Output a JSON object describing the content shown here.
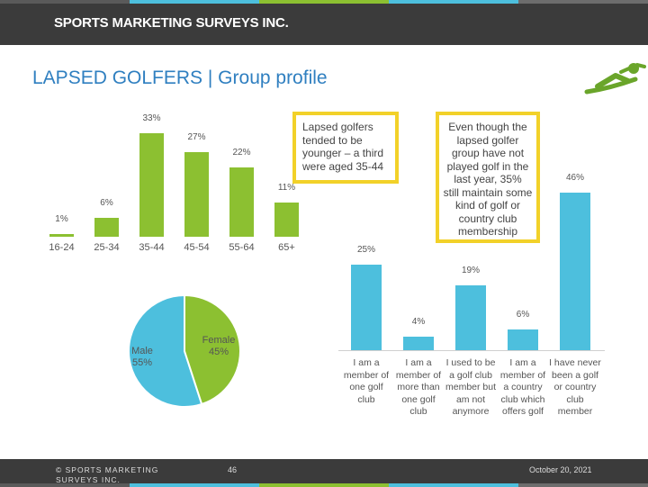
{
  "header": {
    "brand": "SPORTS MARKETING SURVEYS INC.",
    "stripe_colors": [
      "#5a5a5a",
      "#4dbfdd",
      "#8cc031",
      "#4dbfdd",
      "#6d6d6d"
    ]
  },
  "title": "LAPSED GOLFERS | Group profile",
  "callouts": {
    "age": [
      "Lapsed golfers",
      "tended to be",
      "younger – a third",
      "were aged 35-44"
    ],
    "membership": [
      "Even though the",
      "lapsed golfer",
      "group have not",
      "played golf in the",
      "last year, 35%",
      "still maintain some",
      "kind of golf or",
      "country club",
      "membership"
    ]
  },
  "chart_data": [
    {
      "type": "bar",
      "title": "",
      "categories": [
        "16-24",
        "25-34",
        "35-44",
        "45-54",
        "55-64",
        "65+"
      ],
      "values": [
        1,
        6,
        33,
        27,
        22,
        11
      ],
      "value_labels": [
        "1%",
        "6%",
        "33%",
        "27%",
        "22%",
        "11%"
      ],
      "color": "#8cc031",
      "ylim": [
        0,
        33
      ]
    },
    {
      "type": "bar",
      "title": "",
      "categories": [
        [
          "I am a",
          "member of",
          "one golf",
          "club"
        ],
        [
          "I am a",
          "member of",
          "more than",
          "one golf",
          "club"
        ],
        [
          "I used to be",
          "a golf club",
          "member but",
          "am not",
          "anymore"
        ],
        [
          "I am a",
          "member of",
          "a country",
          "club which",
          "offers golf"
        ],
        [
          "I have never",
          "been a golf",
          "or country",
          "club",
          "member"
        ]
      ],
      "values": [
        25,
        4,
        19,
        6,
        46
      ],
      "value_labels": [
        "25%",
        "4%",
        "19%",
        "6%",
        "46%"
      ],
      "color": "#4dbfdd",
      "ylim": [
        0,
        46
      ]
    },
    {
      "type": "pie",
      "title": "",
      "slices": [
        {
          "label": "Female",
          "value": 45,
          "value_label": "45%",
          "color": "#8cc031"
        },
        {
          "label": "Male",
          "value": 55,
          "value_label": "55%",
          "color": "#4dbfdd"
        }
      ]
    }
  ],
  "footer": {
    "copyright": "© SPORTS MARKETING SURVEYS INC.",
    "page": "46",
    "date": "October 20, 2021",
    "stripe_colors": [
      "#5a5a5a",
      "#4dbfdd",
      "#8cc031",
      "#4dbfdd",
      "#6d6d6d"
    ]
  }
}
